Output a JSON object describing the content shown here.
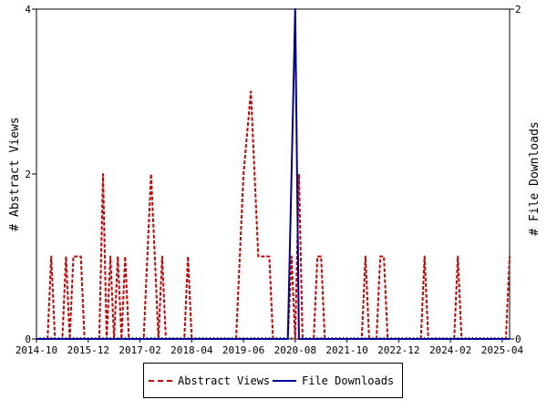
{
  "chart_data": {
    "type": "line",
    "xlabel": "",
    "ylabel_left": "# Abstract Views",
    "ylabel_right": "# File Downloads",
    "x_tick_labels": [
      "2014-10",
      "2015-12",
      "2017-02",
      "2018-04",
      "2019-06",
      "2020-08",
      "2021-10",
      "2022-12",
      "2024-02",
      "2025-04"
    ],
    "x_range": [
      "2014-10",
      "2025-06"
    ],
    "y_left_ticks": [
      "0",
      "2",
      "4"
    ],
    "y_left_range": [
      0,
      4
    ],
    "y_right_ticks": [
      "0",
      "2"
    ],
    "y_right_range": [
      0,
      2
    ],
    "grid": false,
    "legend_position": "bottom",
    "series": [
      {
        "name": "Abstract Views",
        "axis": "left",
        "color": "#cc0000",
        "style": "dashed",
        "points": [
          [
            "2014-10",
            0
          ],
          [
            "2015-01",
            0
          ],
          [
            "2015-02",
            1
          ],
          [
            "2015-03",
            0
          ],
          [
            "2015-05",
            0
          ],
          [
            "2015-06",
            1
          ],
          [
            "2015-07",
            0
          ],
          [
            "2015-08",
            1
          ],
          [
            "2015-09",
            1
          ],
          [
            "2015-10",
            1
          ],
          [
            "2015-11",
            0
          ],
          [
            "2016-03",
            0
          ],
          [
            "2016-04",
            2
          ],
          [
            "2016-05",
            0
          ],
          [
            "2016-06",
            1
          ],
          [
            "2016-07",
            0
          ],
          [
            "2016-08",
            1
          ],
          [
            "2016-09",
            0
          ],
          [
            "2016-10",
            1
          ],
          [
            "2016-11",
            0
          ],
          [
            "2017-03",
            0
          ],
          [
            "2017-05",
            2
          ],
          [
            "2017-06",
            1
          ],
          [
            "2017-07",
            0
          ],
          [
            "2017-08",
            1
          ],
          [
            "2017-09",
            0
          ],
          [
            "2018-02",
            0
          ],
          [
            "2018-03",
            1
          ],
          [
            "2018-04",
            0
          ],
          [
            "2019-04",
            0
          ],
          [
            "2019-06",
            2
          ],
          [
            "2019-08",
            3
          ],
          [
            "2019-10",
            1
          ],
          [
            "2019-11",
            1
          ],
          [
            "2019-12",
            1
          ],
          [
            "2020-01",
            1
          ],
          [
            "2020-02",
            0
          ],
          [
            "2020-06",
            0
          ],
          [
            "2020-07",
            1
          ],
          [
            "2020-08",
            0
          ],
          [
            "2020-09",
            2
          ],
          [
            "2020-10",
            0
          ],
          [
            "2021-01",
            0
          ],
          [
            "2021-02",
            1
          ],
          [
            "2021-03",
            1
          ],
          [
            "2021-04",
            0
          ],
          [
            "2022-02",
            0
          ],
          [
            "2022-03",
            1
          ],
          [
            "2022-04",
            0
          ],
          [
            "2022-06",
            0
          ],
          [
            "2022-07",
            1
          ],
          [
            "2022-08",
            1
          ],
          [
            "2022-09",
            0
          ],
          [
            "2023-06",
            0
          ],
          [
            "2023-07",
            1
          ],
          [
            "2023-08",
            0
          ],
          [
            "2024-03",
            0
          ],
          [
            "2024-04",
            1
          ],
          [
            "2024-05",
            0
          ],
          [
            "2025-05",
            0
          ],
          [
            "2025-06",
            1
          ]
        ]
      },
      {
        "name": "File Downloads",
        "axis": "right",
        "color": "#000099",
        "style": "solid",
        "points": [
          [
            "2014-10",
            0
          ],
          [
            "2020-06",
            0
          ],
          [
            "2020-07",
            1
          ],
          [
            "2020-08",
            2
          ],
          [
            "2020-09",
            0
          ],
          [
            "2025-06",
            0
          ]
        ]
      }
    ]
  },
  "legend": {
    "items": [
      {
        "label": "Abstract Views",
        "color": "#cc0000",
        "style": "dashed"
      },
      {
        "label": "File Downloads",
        "color": "#000099",
        "style": "solid"
      }
    ]
  }
}
